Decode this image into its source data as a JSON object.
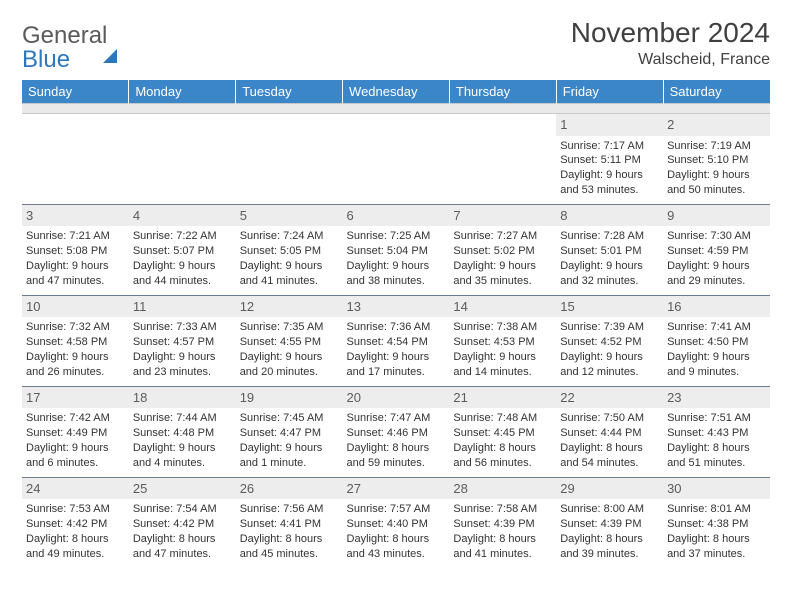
{
  "brand": {
    "word1": "General",
    "word2": "Blue"
  },
  "title": "November 2024",
  "location": "Walscheid, France",
  "colors": {
    "header_bg": "#3a86c8",
    "header_text": "#ffffff",
    "daynum_bg": "#ededed",
    "row_divider": "#6b7d90",
    "spacer_bg": "#e9e9e9",
    "page_bg": "#ffffff",
    "brand_blue": "#2f77bb",
    "text": "#333333"
  },
  "dayHeaders": [
    "Sunday",
    "Monday",
    "Tuesday",
    "Wednesday",
    "Thursday",
    "Friday",
    "Saturday"
  ],
  "weeks": [
    [
      null,
      null,
      null,
      null,
      null,
      {
        "d": "1",
        "sr": "7:17 AM",
        "ss": "5:11 PM",
        "dl": "9 hours and 53 minutes."
      },
      {
        "d": "2",
        "sr": "7:19 AM",
        "ss": "5:10 PM",
        "dl": "9 hours and 50 minutes."
      }
    ],
    [
      {
        "d": "3",
        "sr": "7:21 AM",
        "ss": "5:08 PM",
        "dl": "9 hours and 47 minutes."
      },
      {
        "d": "4",
        "sr": "7:22 AM",
        "ss": "5:07 PM",
        "dl": "9 hours and 44 minutes."
      },
      {
        "d": "5",
        "sr": "7:24 AM",
        "ss": "5:05 PM",
        "dl": "9 hours and 41 minutes."
      },
      {
        "d": "6",
        "sr": "7:25 AM",
        "ss": "5:04 PM",
        "dl": "9 hours and 38 minutes."
      },
      {
        "d": "7",
        "sr": "7:27 AM",
        "ss": "5:02 PM",
        "dl": "9 hours and 35 minutes."
      },
      {
        "d": "8",
        "sr": "7:28 AM",
        "ss": "5:01 PM",
        "dl": "9 hours and 32 minutes."
      },
      {
        "d": "9",
        "sr": "7:30 AM",
        "ss": "4:59 PM",
        "dl": "9 hours and 29 minutes."
      }
    ],
    [
      {
        "d": "10",
        "sr": "7:32 AM",
        "ss": "4:58 PM",
        "dl": "9 hours and 26 minutes."
      },
      {
        "d": "11",
        "sr": "7:33 AM",
        "ss": "4:57 PM",
        "dl": "9 hours and 23 minutes."
      },
      {
        "d": "12",
        "sr": "7:35 AM",
        "ss": "4:55 PM",
        "dl": "9 hours and 20 minutes."
      },
      {
        "d": "13",
        "sr": "7:36 AM",
        "ss": "4:54 PM",
        "dl": "9 hours and 17 minutes."
      },
      {
        "d": "14",
        "sr": "7:38 AM",
        "ss": "4:53 PM",
        "dl": "9 hours and 14 minutes."
      },
      {
        "d": "15",
        "sr": "7:39 AM",
        "ss": "4:52 PM",
        "dl": "9 hours and 12 minutes."
      },
      {
        "d": "16",
        "sr": "7:41 AM",
        "ss": "4:50 PM",
        "dl": "9 hours and 9 minutes."
      }
    ],
    [
      {
        "d": "17",
        "sr": "7:42 AM",
        "ss": "4:49 PM",
        "dl": "9 hours and 6 minutes."
      },
      {
        "d": "18",
        "sr": "7:44 AM",
        "ss": "4:48 PM",
        "dl": "9 hours and 4 minutes."
      },
      {
        "d": "19",
        "sr": "7:45 AM",
        "ss": "4:47 PM",
        "dl": "9 hours and 1 minute."
      },
      {
        "d": "20",
        "sr": "7:47 AM",
        "ss": "4:46 PM",
        "dl": "8 hours and 59 minutes."
      },
      {
        "d": "21",
        "sr": "7:48 AM",
        "ss": "4:45 PM",
        "dl": "8 hours and 56 minutes."
      },
      {
        "d": "22",
        "sr": "7:50 AM",
        "ss": "4:44 PM",
        "dl": "8 hours and 54 minutes."
      },
      {
        "d": "23",
        "sr": "7:51 AM",
        "ss": "4:43 PM",
        "dl": "8 hours and 51 minutes."
      }
    ],
    [
      {
        "d": "24",
        "sr": "7:53 AM",
        "ss": "4:42 PM",
        "dl": "8 hours and 49 minutes."
      },
      {
        "d": "25",
        "sr": "7:54 AM",
        "ss": "4:42 PM",
        "dl": "8 hours and 47 minutes."
      },
      {
        "d": "26",
        "sr": "7:56 AM",
        "ss": "4:41 PM",
        "dl": "8 hours and 45 minutes."
      },
      {
        "d": "27",
        "sr": "7:57 AM",
        "ss": "4:40 PM",
        "dl": "8 hours and 43 minutes."
      },
      {
        "d": "28",
        "sr": "7:58 AM",
        "ss": "4:39 PM",
        "dl": "8 hours and 41 minutes."
      },
      {
        "d": "29",
        "sr": "8:00 AM",
        "ss": "4:39 PM",
        "dl": "8 hours and 39 minutes."
      },
      {
        "d": "30",
        "sr": "8:01 AM",
        "ss": "4:38 PM",
        "dl": "8 hours and 37 minutes."
      }
    ]
  ],
  "labels": {
    "sunrise": "Sunrise: ",
    "sunset": "Sunset: ",
    "daylight": "Daylight: "
  }
}
